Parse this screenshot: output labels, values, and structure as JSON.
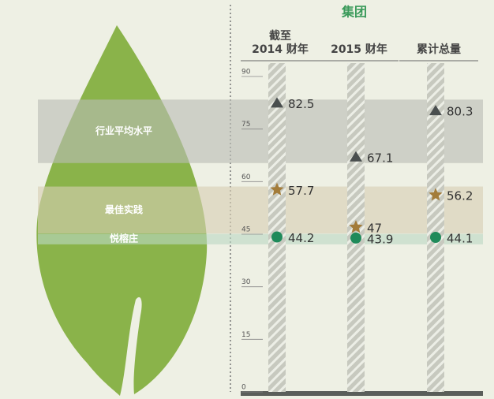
{
  "chart_data": {
    "type": "scatter",
    "title": "集团",
    "categories": [
      "截至\n2014 财年",
      "2015 财年",
      "累计总量"
    ],
    "ylim": [
      0,
      90
    ],
    "yticks": [
      0,
      15,
      30,
      45,
      60,
      75,
      90
    ],
    "series": [
      {
        "name": "行业平均水平",
        "color": "#4a4f4f",
        "marker": "triangle",
        "band_color": "#b9bdb4",
        "values": [
          82.5,
          67.1,
          80.3
        ]
      },
      {
        "name": "最佳实践",
        "color": "#a37c3a",
        "marker": "star",
        "band_color": "#d7cfb3",
        "values": [
          57.7,
          47.0,
          56.2
        ]
      },
      {
        "name": "悦榕庄",
        "color": "#1f8a5a",
        "marker": "circle",
        "band_color": "#bcd8c4",
        "values": [
          44.2,
          43.9,
          44.1
        ]
      }
    ]
  }
}
